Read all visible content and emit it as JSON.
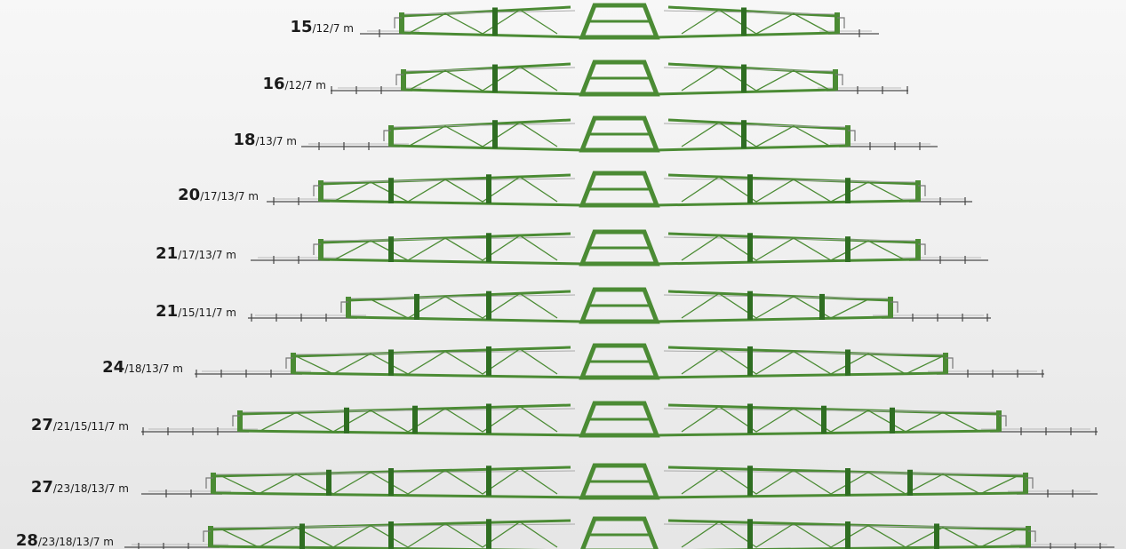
{
  "rows": [
    {
      "main": "15",
      "rest": "/12/7 m"
    },
    {
      "main": "16",
      "rest": "/12/7 m"
    },
    {
      "main": "18",
      "rest": "/13/7 m"
    },
    {
      "main": "20",
      "rest": "/17/13/7 m"
    },
    {
      "main": "21",
      "rest": "/17/13/7 m"
    },
    {
      "main": "21",
      "rest": "/15/11/7 m"
    },
    {
      "main": "24",
      "rest": "/18/13/7 m"
    },
    {
      "main": "27",
      "rest": "/21/15/11/7 m"
    },
    {
      "main": "27",
      "rest": "/23/18/13/7 m"
    },
    {
      "main": "28",
      "rest": "/23/18/13/7 m"
    }
  ]
}
